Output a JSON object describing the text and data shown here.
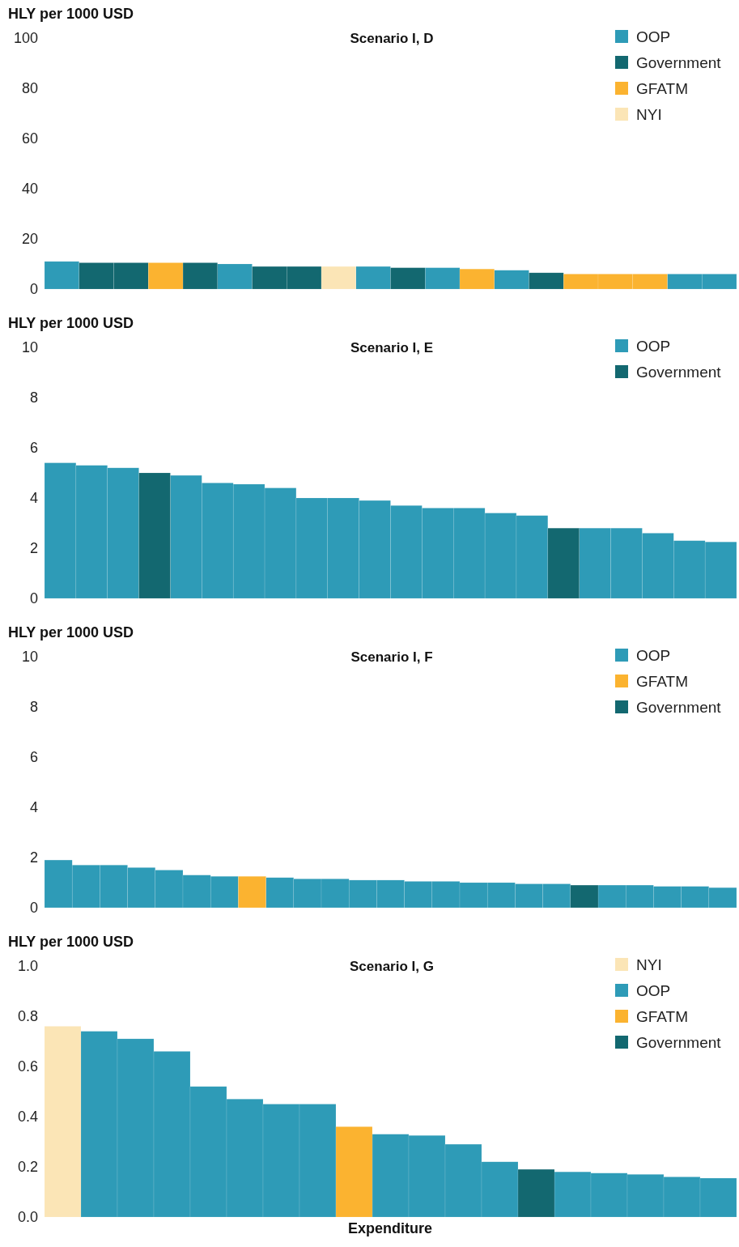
{
  "chart_data": [
    {
      "type": "bar",
      "title": "Scenario I, D",
      "ylabel": "HLY per 1000 USD",
      "categories": [
        null,
        null,
        null,
        null,
        null,
        null,
        null,
        null,
        null,
        null,
        null,
        null,
        null,
        null,
        null,
        null,
        null,
        null,
        null,
        null
      ],
      "stacked": true,
      "ylim": [
        0,
        100
      ],
      "yticks": [
        0,
        20,
        40,
        60,
        80,
        100
      ],
      "tick_labels": "y",
      "legend": "top right",
      "series": [
        {
          "name": "OOP",
          "color": "#2e9bb7",
          "values": [
            11,
            null,
            null,
            null,
            null,
            10,
            null,
            null,
            null,
            9,
            null,
            8.5,
            null,
            7.5,
            null,
            null,
            null,
            null,
            6,
            6
          ]
        },
        {
          "name": "Government",
          "color": "#136870",
          "values": [
            null,
            10.5,
            10.5,
            null,
            10.5,
            null,
            9,
            9,
            null,
            null,
            8.5,
            null,
            null,
            null,
            6.5,
            null,
            null,
            null,
            null,
            null
          ]
        },
        {
          "name": "GFATM",
          "color": "#fbb330",
          "values": [
            null,
            null,
            null,
            10.5,
            null,
            null,
            null,
            null,
            null,
            null,
            null,
            null,
            8,
            null,
            null,
            6,
            6,
            6,
            null,
            null
          ]
        },
        {
          "name": "NYI",
          "color": "#fbe5b6",
          "values": [
            null,
            null,
            null,
            null,
            null,
            null,
            null,
            null,
            9,
            null,
            null,
            null,
            null,
            null,
            null,
            null,
            null,
            null,
            null,
            null
          ]
        }
      ]
    },
    {
      "type": "bar",
      "title": "Scenario I, E",
      "ylabel": "HLY per 1000 USD",
      "categories": [
        null,
        null,
        null,
        null,
        null,
        null,
        null,
        null,
        null,
        null,
        null,
        null,
        null,
        null,
        null,
        null,
        null,
        null,
        null,
        null,
        null,
        null
      ],
      "stacked": true,
      "ylim": [
        0,
        10
      ],
      "yticks": [
        0,
        2,
        4,
        6,
        8,
        10
      ],
      "tick_labels": "y",
      "legend": "top right",
      "series": [
        {
          "name": "OOP",
          "color": "#2e9bb7",
          "values": [
            5.4,
            5.3,
            5.2,
            null,
            4.9,
            4.6,
            4.55,
            4.4,
            4.0,
            4.0,
            3.9,
            3.7,
            3.6,
            3.6,
            3.4,
            3.3,
            null,
            2.8,
            2.8,
            2.6,
            2.3,
            2.25
          ]
        },
        {
          "name": "Government",
          "color": "#136870",
          "values": [
            null,
            null,
            null,
            5.0,
            null,
            null,
            null,
            null,
            null,
            null,
            null,
            null,
            null,
            null,
            null,
            null,
            2.8,
            null,
            null,
            null,
            null,
            null
          ]
        }
      ]
    },
    {
      "type": "bar",
      "title": "Scenario I, F",
      "ylabel": "HLY per 1000 USD",
      "categories": [
        null,
        null,
        null,
        null,
        null,
        null,
        null,
        null,
        null,
        null,
        null,
        null,
        null,
        null,
        null,
        null,
        null,
        null,
        null,
        null,
        null,
        null,
        null,
        null,
        null
      ],
      "stacked": true,
      "ylim": [
        0,
        10
      ],
      "yticks": [
        0,
        2,
        4,
        6,
        8,
        10
      ],
      "tick_labels": "y",
      "legend": "top right",
      "series": [
        {
          "name": "OOP",
          "color": "#2e9bb7",
          "values": [
            1.9,
            1.7,
            1.7,
            1.6,
            1.5,
            1.3,
            1.25,
            null,
            1.2,
            1.15,
            1.15,
            1.1,
            1.1,
            1.05,
            1.05,
            1.0,
            1.0,
            0.95,
            0.95,
            null,
            0.9,
            0.9,
            0.85,
            0.85,
            0.8
          ]
        },
        {
          "name": "GFATM",
          "color": "#fbb330",
          "values": [
            null,
            null,
            null,
            null,
            null,
            null,
            null,
            1.25,
            null,
            null,
            null,
            null,
            null,
            null,
            null,
            null,
            null,
            null,
            null,
            null,
            null,
            null,
            null,
            null,
            null
          ]
        },
        {
          "name": "Government",
          "color": "#136870",
          "values": [
            null,
            null,
            null,
            null,
            null,
            null,
            null,
            null,
            null,
            null,
            null,
            null,
            null,
            null,
            null,
            null,
            null,
            null,
            null,
            0.9,
            null,
            null,
            null,
            null,
            null
          ]
        }
      ]
    },
    {
      "type": "bar",
      "title": "Scenario I, G",
      "ylabel": "HLY per 1000 USD",
      "xlabel": "Expenditure",
      "categories": [
        null,
        null,
        null,
        null,
        null,
        null,
        null,
        null,
        null,
        null,
        null,
        null,
        null,
        null,
        null,
        null,
        null,
        null,
        null
      ],
      "stacked": true,
      "ylim": [
        0,
        1
      ],
      "yticks": [
        {
          "value": 0,
          "label": "0.0"
        },
        {
          "value": 0.2,
          "label": "0.2"
        },
        {
          "value": 0.4,
          "label": "0.4"
        },
        {
          "value": 0.6,
          "label": "0.6"
        },
        {
          "value": 0.8,
          "label": "0.8"
        },
        {
          "value": 1,
          "label": "1.0"
        }
      ],
      "tick_labels": "y",
      "legend": "top right",
      "series": [
        {
          "name": "NYI",
          "color": "#fbe5b6",
          "values": [
            0.76,
            null,
            null,
            null,
            null,
            null,
            null,
            null,
            null,
            null,
            null,
            null,
            null,
            null,
            null,
            null,
            null,
            null,
            null
          ]
        },
        {
          "name": "OOP",
          "color": "#2e9bb7",
          "values": [
            null,
            0.74,
            0.71,
            0.66,
            0.52,
            0.47,
            0.45,
            0.45,
            null,
            0.33,
            0.325,
            0.29,
            0.22,
            null,
            0.18,
            0.175,
            0.17,
            0.16,
            0.155
          ]
        },
        {
          "name": "GFATM",
          "color": "#fbb330",
          "values": [
            null,
            null,
            null,
            null,
            null,
            null,
            null,
            null,
            0.36,
            null,
            null,
            null,
            null,
            null,
            null,
            null,
            null,
            null,
            null
          ]
        },
        {
          "name": "Government",
          "color": "#136870",
          "values": [
            null,
            null,
            null,
            null,
            null,
            null,
            null,
            null,
            null,
            null,
            null,
            null,
            null,
            0.19,
            null,
            null,
            null,
            null,
            null
          ]
        }
      ]
    }
  ]
}
